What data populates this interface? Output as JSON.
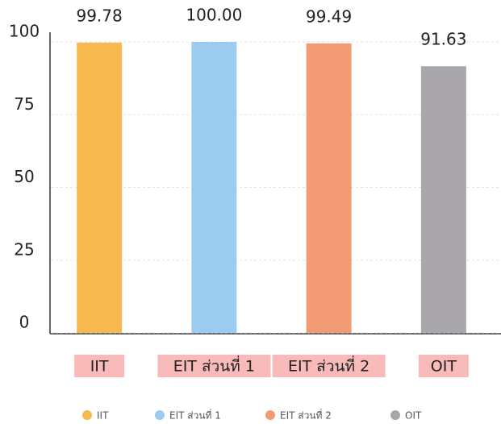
{
  "chart_data": {
    "type": "bar",
    "categories": [
      "IIT",
      "EIT ส่วนที่ 1",
      "EIT ส่วนที่ 2",
      "OIT"
    ],
    "values": [
      99.78,
      100,
      99.49,
      91.63
    ],
    "value_labels": [
      "99.78",
      "100.00",
      "99.49",
      "91.63"
    ],
    "colors": [
      "#f5b94f",
      "#9ccbf0",
      "#f29a73",
      "#aaa7ac"
    ],
    "ylim": [
      0,
      100
    ],
    "yticks": [
      0,
      25,
      50,
      75,
      100
    ],
    "grid": true,
    "legend": "bottom"
  }
}
